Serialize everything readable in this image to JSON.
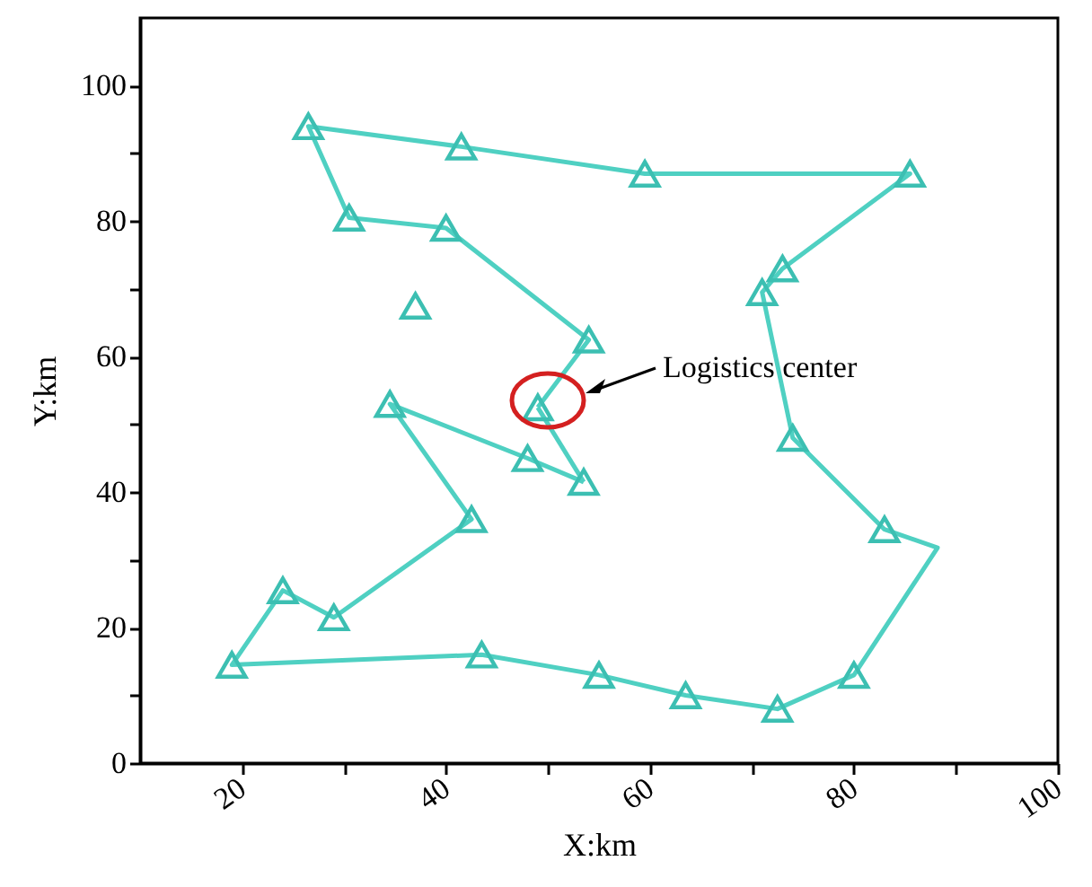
{
  "chart_data": {
    "type": "line",
    "xlabel": "X:km",
    "ylabel": "Y:km",
    "xlim": [
      10,
      100
    ],
    "ylim": [
      0,
      110
    ],
    "xticks": [
      20,
      {
        "value": 30,
        "label": null
      },
      40,
      {
        "value": 50,
        "label": null
      },
      60,
      {
        "value": 70,
        "label": null
      },
      80,
      {
        "value": 90,
        "label": null
      },
      100
    ],
    "yticks": [
      0,
      {
        "value": 10,
        "label": null
      },
      20,
      {
        "value": 30,
        "label": null
      },
      40,
      {
        "value": 50,
        "label": null
      },
      60,
      {
        "value": 70,
        "label": null
      },
      80,
      {
        "value": 90,
        "label": null
      },
      100
    ],
    "grid": false,
    "legend": false,
    "line_style": "solid",
    "series": [
      {
        "marker": "none",
        "color": "#4fd0c2",
        "x": [
          49,
          54,
          40,
          30.5,
          26.5,
          41.5,
          59.5,
          85.5,
          73,
          71,
          74,
          83,
          88.2,
          80,
          72.5,
          63.5,
          55,
          43.5,
          19,
          24,
          29,
          42.5,
          34.5,
          48,
          53.5
        ],
        "values": [
          52.5,
          62.5,
          79,
          80.5,
          94,
          91,
          87,
          87,
          73,
          69.5,
          48,
          34.5,
          31.8,
          13,
          8,
          10,
          13,
          16,
          14.5,
          25.5,
          21.5,
          36,
          53,
          45,
          41.5
        ]
      },
      {
        "marker": "none",
        "color": "#4fd0c2",
        "x": [
          53.5,
          49
        ],
        "values": [
          41.5,
          52.5
        ]
      },
      {
        "type": "scatter",
        "marker": "triangle",
        "color": "#3cbfb2",
        "x": [
          49,
          54,
          40,
          30.5,
          26.5,
          41.5,
          59.5,
          85.5,
          73,
          71,
          74,
          83,
          80,
          72.5,
          63.5,
          55,
          43.5,
          19,
          24,
          29,
          42.5,
          34.5,
          48,
          53.5,
          37
        ],
        "values": [
          52.5,
          62.5,
          79,
          80.5,
          94,
          91,
          87,
          87,
          73,
          69.5,
          48,
          34.5,
          13,
          8,
          10,
          13,
          16,
          14.5,
          25.5,
          21.5,
          36,
          53,
          45,
          41.5,
          67.5
        ]
      }
    ],
    "annotations": [
      "Logistics center"
    ]
  }
}
